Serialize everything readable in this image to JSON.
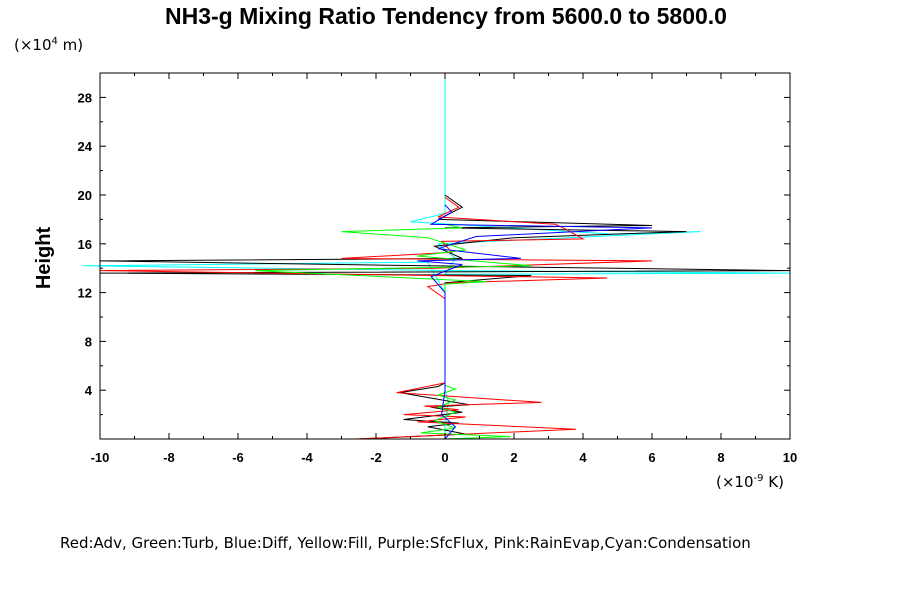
{
  "chart_data": {
    "type": "line",
    "title": "NH3-g Mixing Ratio Tendency from 5600.0 to 5800.0",
    "ylabel": "Height",
    "y_unit": {
      "prefix": "(×10",
      "exp": "4",
      "suffix": " m)"
    },
    "x_unit": {
      "prefix": "(×10",
      "exp": "-9",
      "suffix": " K)"
    },
    "xlim": [
      -10,
      10
    ],
    "ylim": [
      0,
      30
    ],
    "x_ticks": [
      "-10",
      "-8",
      "-6",
      "-4",
      "-2",
      "0",
      "2",
      "4",
      "6",
      "8",
      "10"
    ],
    "y_ticks": [
      "4",
      "8",
      "12",
      "16",
      "20",
      "24",
      "28"
    ],
    "grid": false,
    "legend_text": "Red:Adv, Green:Turb, Blue:Diff, Yellow:Fill, Purple:SfcFlux, Pink:RainEvap,Cyan:Condensation",
    "series": [
      {
        "color": "#00ffff",
        "points": [
          [
            0,
            0
          ],
          [
            0,
            1
          ],
          [
            0.1,
            3
          ],
          [
            0,
            4
          ],
          [
            0,
            5
          ],
          [
            0,
            10
          ],
          [
            0,
            12
          ],
          [
            -0.5,
            14.5
          ],
          [
            -10.5,
            14.2
          ],
          [
            0.2,
            13.8
          ],
          [
            10,
            13.6
          ],
          [
            0,
            13.5
          ],
          [
            0.3,
            14.8
          ],
          [
            -0.2,
            16
          ],
          [
            7.4,
            17
          ],
          [
            4.8,
            16.8
          ],
          [
            -1,
            17.8
          ],
          [
            0,
            18.5
          ],
          [
            0,
            20
          ],
          [
            0,
            30
          ]
        ]
      },
      {
        "color": "#000000",
        "points": [
          [
            -2.5,
            0
          ],
          [
            0.6,
            0.4
          ],
          [
            -0.5,
            1
          ],
          [
            0.4,
            1.3
          ],
          [
            -1.2,
            1.6
          ],
          [
            0.5,
            2.2
          ],
          [
            -0.4,
            2.6
          ],
          [
            0.7,
            2.8
          ],
          [
            -1.3,
            3.8
          ],
          [
            -0.2,
            4.3
          ],
          [
            0,
            4.6
          ],
          [
            0,
            6.2
          ],
          [
            0,
            12
          ],
          [
            0,
            12.8
          ],
          [
            2.5,
            13.4
          ],
          [
            -10,
            13.6
          ],
          [
            10,
            13.8
          ],
          [
            -0.5,
            14.2
          ],
          [
            -10,
            14.6
          ],
          [
            0.5,
            14.8
          ],
          [
            -0.3,
            15.8
          ],
          [
            2,
            16.5
          ],
          [
            7,
            17
          ],
          [
            0,
            17.3
          ],
          [
            6,
            17.5
          ],
          [
            -0.2,
            18
          ],
          [
            0.5,
            19
          ],
          [
            0,
            20
          ]
        ]
      },
      {
        "color": "#ff0000",
        "points": [
          [
            -2.6,
            0
          ],
          [
            3.8,
            0.8
          ],
          [
            -0.8,
            1.4
          ],
          [
            0.6,
            1.8
          ],
          [
            -1.2,
            2
          ],
          [
            0.4,
            2.4
          ],
          [
            -0.6,
            2.7
          ],
          [
            2.8,
            3
          ],
          [
            -1.4,
            3.8
          ],
          [
            0,
            4.6
          ],
          [
            0,
            11.5
          ],
          [
            -0.5,
            12.5
          ],
          [
            0.2,
            12.8
          ],
          [
            4.7,
            13.2
          ],
          [
            -10,
            13.8
          ],
          [
            -0.3,
            14
          ],
          [
            6,
            14.6
          ],
          [
            -3,
            14.8
          ],
          [
            0.2,
            15.3
          ],
          [
            -0.1,
            16.2
          ],
          [
            4,
            16.4
          ],
          [
            3.5,
            17.2
          ],
          [
            3.2,
            17.6
          ],
          [
            -0.2,
            18.2
          ],
          [
            0.4,
            19
          ],
          [
            0,
            19.8
          ]
        ]
      },
      {
        "color": "#00ff00",
        "points": [
          [
            0,
            0
          ],
          [
            1.9,
            0.2
          ],
          [
            -0.7,
            0.5
          ],
          [
            0.3,
            0.9
          ],
          [
            -0.3,
            1.5
          ],
          [
            0.3,
            2.2
          ],
          [
            -0.2,
            2.6
          ],
          [
            0.3,
            3.2
          ],
          [
            -0.2,
            3.6
          ],
          [
            0.3,
            4.1
          ],
          [
            0,
            4.4
          ],
          [
            0,
            11.5
          ],
          [
            0,
            12.7
          ],
          [
            1.2,
            12.9
          ],
          [
            -5.5,
            13.8
          ],
          [
            2.5,
            14.2
          ],
          [
            -0.8,
            15
          ],
          [
            0.6,
            15.5
          ],
          [
            -0.5,
            16.5
          ],
          [
            -3,
            17
          ],
          [
            0.5,
            17.3
          ],
          [
            0,
            17.6
          ]
        ]
      },
      {
        "color": "#0000ff",
        "points": [
          [
            0,
            0
          ],
          [
            0.3,
            1
          ],
          [
            -0.1,
            2
          ],
          [
            0,
            4
          ],
          [
            0,
            12
          ],
          [
            -0.4,
            13.3
          ],
          [
            0.5,
            14.3
          ],
          [
            -0.8,
            14.6
          ],
          [
            2.2,
            14.8
          ],
          [
            -0.2,
            15.6
          ],
          [
            0.9,
            16.6
          ],
          [
            6,
            17.3
          ],
          [
            -0.4,
            17.6
          ],
          [
            0.2,
            18.6
          ],
          [
            0,
            19.2
          ]
        ]
      }
    ]
  }
}
